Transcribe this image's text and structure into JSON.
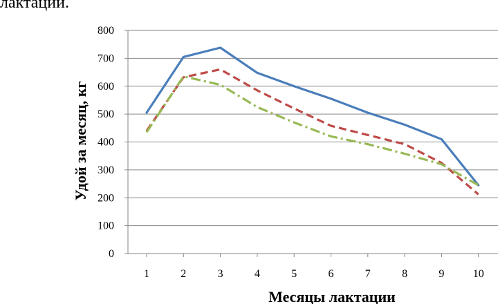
{
  "header_fragment": "лактации.",
  "chart_data": {
    "type": "line",
    "xlabel": "Месяцы лактации",
    "ylabel": "Удой за месяц, кг",
    "ylim": [
      0,
      800
    ],
    "yticks": [
      0,
      100,
      200,
      300,
      400,
      500,
      600,
      700,
      800
    ],
    "x": [
      1,
      2,
      3,
      4,
      5,
      6,
      7,
      8,
      9,
      10
    ],
    "grid": "horizontal",
    "legend": "none",
    "series": [
      {
        "color": "#4a7ebb",
        "dash": "solid",
        "values": [
          505,
          705,
          738,
          648,
          600,
          555,
          505,
          462,
          410,
          245
        ]
      },
      {
        "color": "#be4b48",
        "dash": "dash",
        "values": [
          440,
          632,
          660,
          585,
          520,
          458,
          425,
          392,
          325,
          212
        ]
      },
      {
        "color": "#98b954",
        "dash": "dashdot",
        "values": [
          435,
          635,
          605,
          525,
          470,
          420,
          392,
          358,
          320,
          245
        ]
      }
    ]
  }
}
